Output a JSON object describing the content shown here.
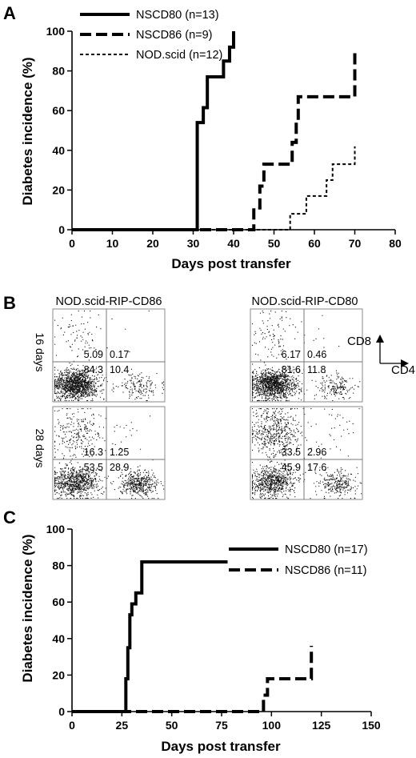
{
  "panels": {
    "a": {
      "letter": "A"
    },
    "b": {
      "letter": "B"
    },
    "c": {
      "letter": "C"
    }
  },
  "chart_data": [
    {
      "id": "A",
      "type": "line",
      "step": true,
      "title": "",
      "xlabel": "Days post transfer",
      "ylabel": "Diabetes incidence (%)",
      "xlim": [
        0,
        80
      ],
      "ylim": [
        0,
        100
      ],
      "xticks": [
        0,
        10,
        20,
        30,
        40,
        50,
        60,
        70,
        80
      ],
      "yticks": [
        0,
        20,
        40,
        60,
        80,
        100
      ],
      "legend_position": "top-left",
      "series": [
        {
          "name": "NSCD80 (n=13)",
          "style": "solid",
          "x": [
            0,
            31,
            32.5,
            33.5,
            34.5,
            37.5,
            39,
            40
          ],
          "y": [
            0,
            54,
            61.5,
            77,
            77,
            85,
            92,
            100
          ]
        },
        {
          "name": "NSCD86 (n=9)",
          "style": "dashed",
          "x": [
            0,
            45,
            46.5,
            47.5,
            48.5,
            53,
            54.5,
            55.5,
            56,
            60,
            65,
            70
          ],
          "y": [
            0,
            11,
            22,
            33,
            33,
            33,
            44,
            55,
            67,
            67,
            67,
            89
          ]
        },
        {
          "name": "NOD.scid (n=12)",
          "style": "dotted",
          "x": [
            0,
            54,
            57,
            58,
            59,
            61,
            63,
            64.5,
            66,
            68,
            70
          ],
          "y": [
            0,
            8,
            8,
            17,
            17,
            17,
            25,
            33,
            33,
            33,
            42
          ]
        }
      ]
    },
    {
      "id": "C",
      "type": "line",
      "step": true,
      "title": "",
      "xlabel": "Days post transfer",
      "ylabel": "Diabetes incidence (%)",
      "xlim": [
        0,
        150
      ],
      "ylim": [
        0,
        100
      ],
      "xticks": [
        0,
        25,
        50,
        75,
        100,
        125,
        150
      ],
      "yticks": [
        0,
        20,
        40,
        60,
        80,
        100
      ],
      "legend_position": "top-right",
      "series": [
        {
          "name": "NSCD80 (n=17)",
          "style": "solid",
          "x": [
            0,
            27,
            28,
            29,
            30,
            31,
            32,
            34,
            35,
            78
          ],
          "y": [
            0,
            18,
            35,
            53,
            59,
            59,
            65,
            65,
            82,
            82
          ]
        },
        {
          "name": "NSCD86 (n=11)",
          "style": "dashed",
          "x": [
            0,
            96,
            98,
            100,
            110,
            120
          ],
          "y": [
            0,
            9,
            18,
            18,
            18,
            36
          ]
        }
      ]
    }
  ],
  "flow": {
    "column_titles": [
      "NOD.scid-RIP-CD86",
      "NOD.scid-RIP-CD80"
    ],
    "row_labels": [
      "16 days",
      "28 days"
    ],
    "axis_x": "CD4",
    "axis_y": "CD8",
    "plots": [
      {
        "row": 0,
        "col": 0,
        "ul": "5.09",
        "ur": "0.17",
        "ll": "84.3",
        "lr": "10.4",
        "ul_pct": 5.09,
        "ur_pct": 0.17,
        "ll_pct": 84.3,
        "lr_pct": 10.4
      },
      {
        "row": 0,
        "col": 1,
        "ul": "6.17",
        "ur": "0.46",
        "ll": "81.6",
        "lr": "11.8",
        "ul_pct": 6.17,
        "ur_pct": 0.46,
        "ll_pct": 81.6,
        "lr_pct": 11.8
      },
      {
        "row": 1,
        "col": 0,
        "ul": "16.3",
        "ur": "1.25",
        "ll": "53.5",
        "lr": "28.9",
        "ul_pct": 16.3,
        "ur_pct": 1.25,
        "ll_pct": 53.5,
        "lr_pct": 28.9
      },
      {
        "row": 1,
        "col": 1,
        "ul": "33.5",
        "ur": "2.96",
        "ll": "45.9",
        "lr": "17.6",
        "ul_pct": 33.5,
        "ur_pct": 2.96,
        "ll_pct": 45.9,
        "lr_pct": 17.6
      }
    ]
  }
}
